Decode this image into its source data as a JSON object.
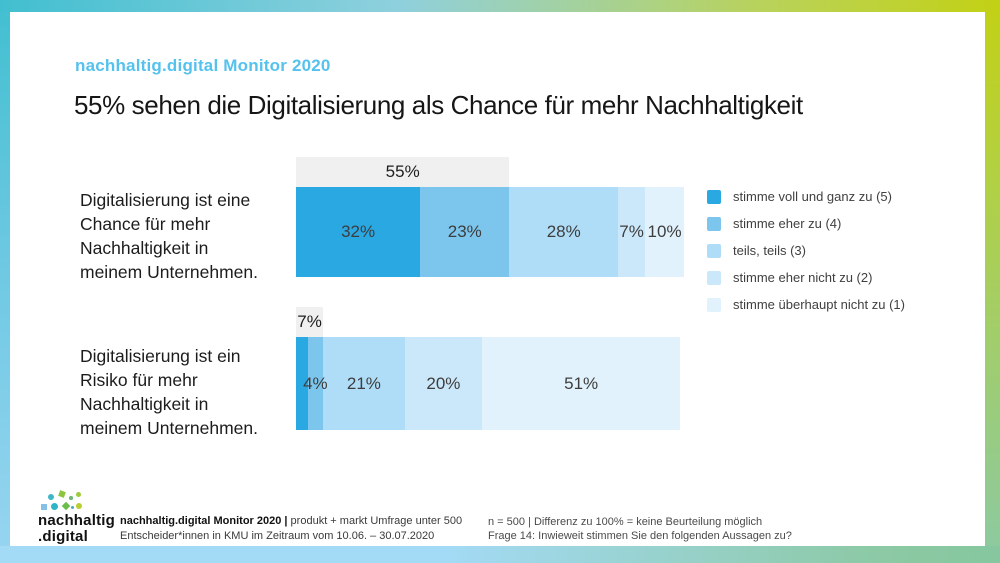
{
  "page": {
    "subtitle": "nachhaltig.digital Monitor 2020",
    "heading": "55% sehen die Digitalisierung als Chance für mehr Nachhaltigkeit"
  },
  "colors": {
    "accent_blue": "#55c2ee",
    "scale": [
      "#2aa8e2",
      "#7cc6ee",
      "#afddf7",
      "#cbe8fa",
      "#e1f2fc"
    ],
    "summary_box": "#f0f0f0"
  },
  "chart_data": {
    "type": "bar",
    "orientation": "horizontal-stacked",
    "unit": "%",
    "legend": [
      "stimme voll und ganz zu (5)",
      "stimme eher zu (4)",
      "teils, teils (3)",
      "stimme eher nicht zu (2)",
      "stimme überhaupt nicht zu (1)"
    ],
    "rows": [
      {
        "label": "Digitalisierung ist eine Chance für mehr Nachhaltigkeit in meinem Unternehmen.",
        "label_display": "Digitalisierung ist eine\nChance für mehr\nNachhaltigkeit in\nmeinem Unternehmen.",
        "values": [
          32,
          23,
          28,
          7,
          10
        ],
        "value_labels": [
          "32%",
          "23%",
          "28%",
          "7%",
          "10%"
        ],
        "summary": {
          "label": "55%",
          "span": 55
        }
      },
      {
        "label": "Digitalisierung ist ein Risiko für mehr Nachhaltigkeit in meinem Unternehmen.",
        "label_display": "Digitalisierung ist ein\nRisiko für mehr\nNachhaltigkeit in\nmeinem Unternehmen.",
        "values": [
          3,
          4,
          21,
          20,
          51
        ],
        "value_labels": [
          "",
          "4%",
          "21%",
          "20%",
          "51%"
        ],
        "summary": {
          "label": "7%",
          "span": 7
        }
      }
    ]
  },
  "footer": {
    "logo_text": "nachhaltig\n.digital",
    "left_bold": "nachhaltig.digital Monitor 2020 |",
    "left_rest": " produkt + markt Umfrage unter 500",
    "left_line2": "Entscheider*innen in KMU im Zeitraum vom 10.06. – 30.07.2020",
    "right_line1": "n = 500 | Differenz zu 100% = keine Beurteilung möglich",
    "right_line2": "Frage 14: Inwieweit stimmen Sie den folgenden Aussagen zu?"
  }
}
